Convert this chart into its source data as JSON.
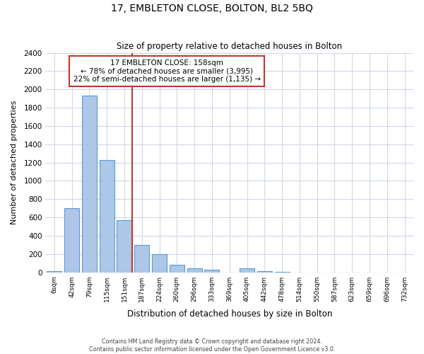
{
  "title": "17, EMBLETON CLOSE, BOLTON, BL2 5BQ",
  "subtitle": "Size of property relative to detached houses in Bolton",
  "xlabel": "Distribution of detached houses by size in Bolton",
  "ylabel": "Number of detached properties",
  "bin_labels": [
    "6sqm",
    "42sqm",
    "79sqm",
    "115sqm",
    "151sqm",
    "187sqm",
    "224sqm",
    "260sqm",
    "296sqm",
    "333sqm",
    "369sqm",
    "405sqm",
    "442sqm",
    "478sqm",
    "514sqm",
    "550sqm",
    "587sqm",
    "623sqm",
    "659sqm",
    "696sqm",
    "732sqm"
  ],
  "bar_values": [
    15,
    700,
    1930,
    1225,
    570,
    300,
    200,
    80,
    45,
    30,
    0,
    40,
    15,
    5,
    0,
    0,
    0,
    0,
    0,
    0,
    0
  ],
  "bar_color": "#aec6e8",
  "bar_edge_color": "#5b9bd5",
  "property_bin_index": 4,
  "red_line_color": "#c0392b",
  "annotation_title": "17 EMBLETON CLOSE: 158sqm",
  "annotation_line1": "← 78% of detached houses are smaller (3,995)",
  "annotation_line2": "22% of semi-detached houses are larger (1,135) →",
  "annotation_box_color": "#ffffff",
  "annotation_box_edge_color": "#c0392b",
  "ylim": [
    0,
    2400
  ],
  "yticks": [
    0,
    200,
    400,
    600,
    800,
    1000,
    1200,
    1400,
    1600,
    1800,
    2000,
    2200,
    2400
  ],
  "footer_line1": "Contains HM Land Registry data © Crown copyright and database right 2024.",
  "footer_line2": "Contains public sector information licensed under the Open Government Licence v3.0.",
  "background_color": "#ffffff",
  "grid_color": "#d0d8e8"
}
